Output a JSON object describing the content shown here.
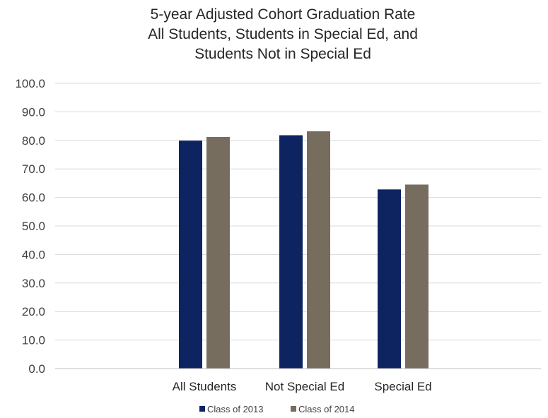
{
  "chart_data": {
    "type": "bar",
    "title": "5-year Adjusted Cohort Graduation Rate",
    "title_lines": [
      "5-year Adjusted Cohort Graduation Rate",
      "All Students, Students in Special Ed, and",
      "Students Not in Special Ed"
    ],
    "xlabel": "",
    "ylabel": "",
    "categories": [
      "All Students",
      "Not Special Ed",
      "Special Ed"
    ],
    "series": [
      {
        "name": "Class of 2013",
        "color": "#0e2461",
        "values": [
          79.9,
          81.8,
          62.8
        ]
      },
      {
        "name": "Class of 2014",
        "color": "#766d5e",
        "values": [
          81.2,
          83.2,
          64.5
        ]
      }
    ],
    "ylim": [
      0,
      100
    ],
    "yticks": [
      "0.0",
      "10.0",
      "20.0",
      "30.0",
      "40.0",
      "50.0",
      "60.0",
      "70.0",
      "80.0",
      "90.0",
      "100.0"
    ],
    "grid": true,
    "legend": "bottom"
  }
}
